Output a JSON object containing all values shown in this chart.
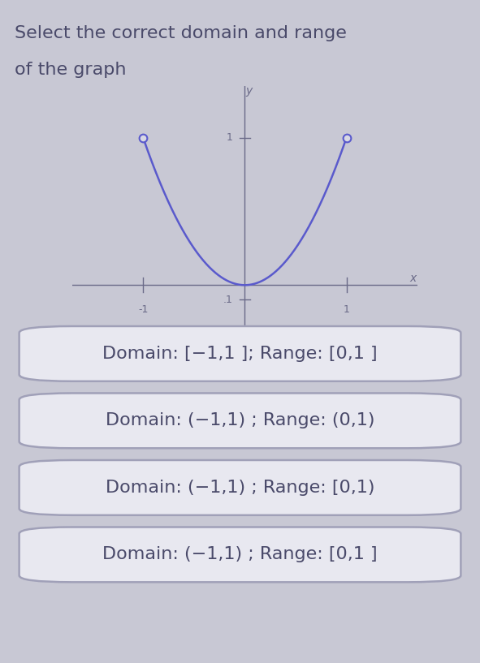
{
  "title_line1": "Select the correct domain and range",
  "title_line2": "of the graph",
  "title_color": "#4a4a6a",
  "bg_color": "#c8c8d4",
  "graph_bg_color": "#d8d8e4",
  "curve_color": "#5a5acc",
  "axis_color": "#6a6a88",
  "choices": [
    "Domain: [−1,1 ]; Range: [0,1 ]",
    "Domain: (−1,1) ; Range: (0,1)",
    "Domain: (−1,1) ; Range: [0,1)",
    "Domain: (−1,1) ; Range: [0,1 ]"
  ],
  "choice_bg": "#e8e8f0",
  "choice_border": "#a0a0b8",
  "choice_text_color": "#4a4a6a",
  "choice_fontsize": 16
}
